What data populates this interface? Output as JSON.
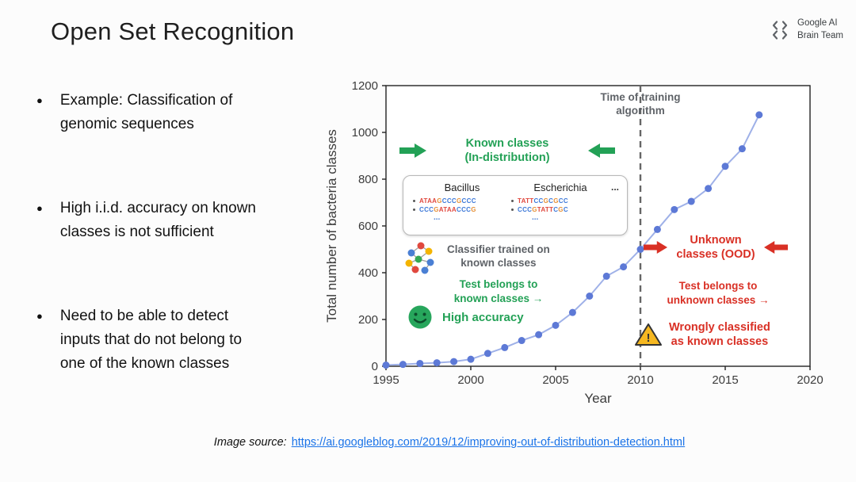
{
  "slide": {
    "title": "Open Set Recognition",
    "logo": {
      "line1": "Google AI",
      "line2": "Brain Team"
    },
    "bullets": [
      "Example: Classification of genomic sequences",
      "High i.i.d. accuracy on known classes is not sufficient",
      "Need to be able to detect inputs that do not belong to one of the known classes"
    ],
    "source": {
      "prefix": "Image source:",
      "link_text": "https://ai.googleblog.com/2019/12/improving-out-of-distribution-detection.html"
    }
  },
  "chart_data": {
    "type": "line",
    "title": "",
    "xlabel": "Year",
    "ylabel": "Total number of bacteria classes",
    "xlim": [
      1995,
      2020
    ],
    "ylim": [
      0,
      1200
    ],
    "xticks": [
      1995,
      2000,
      2005,
      2010,
      2015,
      2020
    ],
    "yticks": [
      0,
      200,
      400,
      600,
      800,
      1000,
      1200
    ],
    "x": [
      1995,
      1996,
      1997,
      1998,
      1999,
      2000,
      2001,
      2002,
      2003,
      2004,
      2005,
      2006,
      2007,
      2008,
      2009,
      2010,
      2011,
      2012,
      2013,
      2014,
      2015,
      2016,
      2017
    ],
    "y": [
      5,
      8,
      12,
      15,
      20,
      30,
      55,
      80,
      110,
      135,
      175,
      230,
      300,
      385,
      425,
      500,
      585,
      670,
      705,
      760,
      855,
      930,
      1075
    ],
    "grid": false,
    "legend": null,
    "marker_color": "#5d79d6",
    "line_color": "#9fb1e8",
    "vline_x": 2010
  },
  "annotations": {
    "time_of_training": [
      "Time of training",
      "algorithm"
    ],
    "known": [
      "Known classes",
      "(In-distribution)"
    ],
    "unknown": [
      "Unknown",
      "classes (OOD)"
    ],
    "classifier": [
      "Classifier trained on",
      "known classes"
    ],
    "test_known": [
      "Test belongs to",
      "known classes →"
    ],
    "high_accuracy": "High accuracy",
    "test_unknown": [
      "Test belongs to",
      "unknown classes →"
    ],
    "wrong": [
      "Wrongly classified",
      "as known classes"
    ],
    "box": {
      "col1_name": "Bacillus",
      "col1_seqs": [
        "ATAAGCCCGCCC",
        "CCCGATAACCCG"
      ],
      "col1_more": "...",
      "col2_name": "Escherichia",
      "col2_seqs": [
        "TATTCCGCGCC",
        "CCCGTATTCGC"
      ],
      "col2_more": "...",
      "ellipsis": "..."
    }
  },
  "colors": {
    "green": "#23a156",
    "red": "#d93025",
    "gray_text": "#5f6368",
    "link": "#1a73e8",
    "warning_yellow": "#f6b821",
    "nucleotides": {
      "A": "#e0483e",
      "T": "#e0483e",
      "G": "#e69138",
      "C": "#3c78d8"
    }
  }
}
